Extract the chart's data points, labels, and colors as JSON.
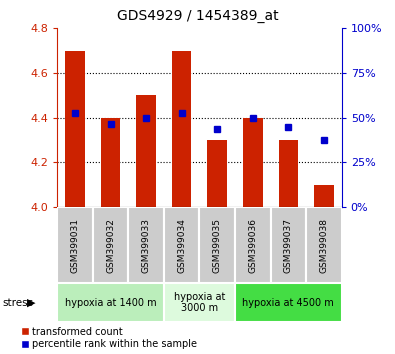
{
  "title": "GDS4929 / 1454389_at",
  "samples": [
    "GSM399031",
    "GSM399032",
    "GSM399033",
    "GSM399034",
    "GSM399035",
    "GSM399036",
    "GSM399037",
    "GSM399038"
  ],
  "bar_values": [
    4.7,
    4.4,
    4.5,
    4.7,
    4.3,
    4.4,
    4.3,
    4.1
  ],
  "bar_base": 4.0,
  "blue_dot_values": [
    4.42,
    4.37,
    4.4,
    4.42,
    4.35,
    4.4,
    4.36,
    4.3
  ],
  "bar_color": "#cc2200",
  "dot_color": "#0000cc",
  "ylim": [
    4.0,
    4.8
  ],
  "y_ticks_left": [
    4.0,
    4.2,
    4.4,
    4.6,
    4.8
  ],
  "y_ticks_right": [
    0,
    25,
    50,
    75,
    100
  ],
  "y_ticks_right_labels": [
    "0%",
    "25%",
    "50%",
    "75%",
    "100%"
  ],
  "dotted_lines": [
    4.2,
    4.4,
    4.6
  ],
  "groups": [
    {
      "label": "hypoxia at 1400 m",
      "start": 0,
      "end": 3,
      "color": "#bbeebb"
    },
    {
      "label": "hypoxia at\n3000 m",
      "start": 3,
      "end": 5,
      "color": "#ddfadd"
    },
    {
      "label": "hypoxia at 4500 m",
      "start": 5,
      "end": 8,
      "color": "#44dd44"
    }
  ],
  "stress_label": "stress",
  "legend_red": "transformed count",
  "legend_blue": "percentile rank within the sample",
  "bar_width": 0.55,
  "left_axis_color": "#cc2200",
  "right_axis_color": "#0000cc",
  "tick_area_color": "#cccccc"
}
